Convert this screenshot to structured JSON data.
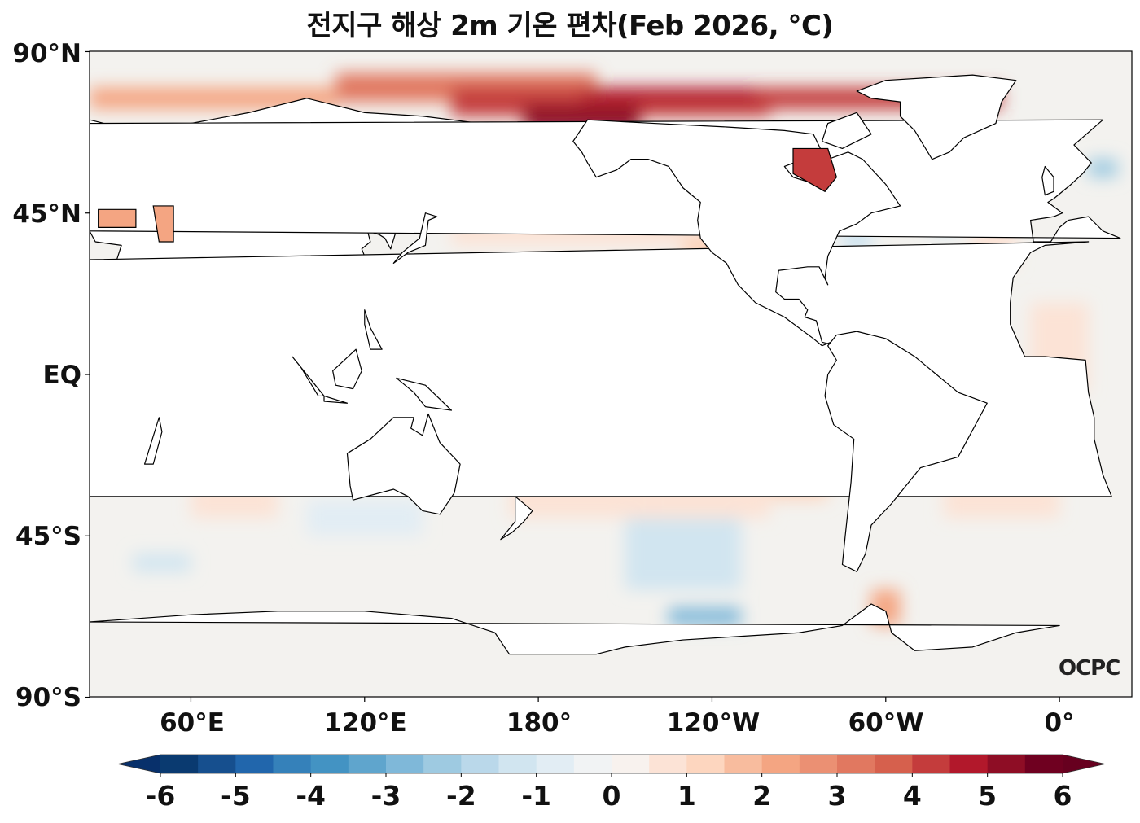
{
  "title": "전지구 해상 2m 기온 편차(Feb 2026, °C)",
  "map": {
    "lat_labels": [
      "90°N",
      "45°N",
      "EQ",
      "45°S",
      "90°S"
    ],
    "lat_values": [
      90,
      45,
      0,
      -45,
      -90
    ],
    "lon_labels": [
      "60°E",
      "120°E",
      "180°",
      "120°W",
      "60°W",
      "0°"
    ],
    "lon_values": [
      60,
      120,
      180,
      240,
      300,
      360
    ],
    "logo_text": "OCPC"
  },
  "colorbar": {
    "tick_labels": [
      "-6",
      "-5",
      "-4",
      "-3",
      "-2",
      "-1",
      "0",
      "1",
      "2",
      "3",
      "4",
      "5",
      "6"
    ],
    "min": -6,
    "max": 6,
    "step": 0.5,
    "colors": [
      "#0a3a70",
      "#164f8e",
      "#2166ac",
      "#3581ba",
      "#4393c3",
      "#5fa5cd",
      "#7fb8d9",
      "#9ecae1",
      "#bad8ea",
      "#d1e5f0",
      "#e2edf4",
      "#f1f3f4",
      "#f8f2ee",
      "#fce3d6",
      "#fdd6bf",
      "#f8bc9e",
      "#f4a582",
      "#eb9073",
      "#e17860",
      "#d6604d",
      "#c43c3c",
      "#b2182b",
      "#8e0d25",
      "#6f0020"
    ],
    "under_color": "#08306b",
    "over_color": "#67001f"
  }
}
